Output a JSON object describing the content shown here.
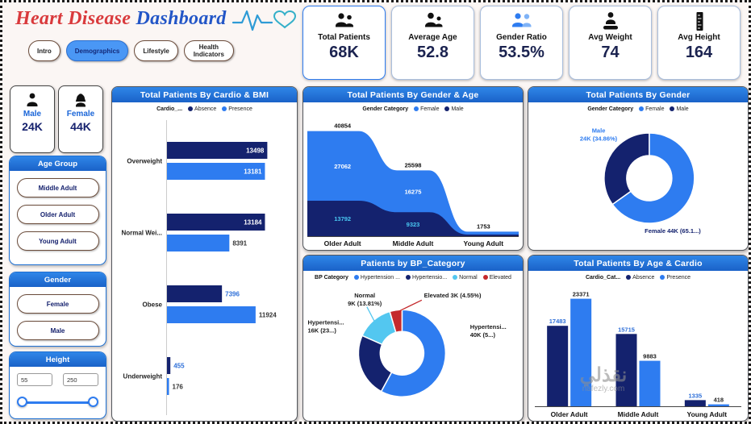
{
  "header": {
    "title_red": "Heart Disease",
    "title_blue": "Dashboard",
    "tabs": [
      {
        "label": "Intro"
      },
      {
        "label": "Demographics"
      },
      {
        "label": "Lifestyle"
      },
      {
        "label": "Health Indicators"
      }
    ]
  },
  "kpis": [
    {
      "label": "Total Patients",
      "value": "68K",
      "icon": "patients-icon"
    },
    {
      "label": "Average Age",
      "value": "52.8",
      "icon": "age-icon"
    },
    {
      "label": "Gender Ratio",
      "value": "53.5%",
      "icon": "gender-ratio-icon"
    },
    {
      "label": "Avg Weight",
      "value": "74",
      "icon": "weight-icon"
    },
    {
      "label": "Avg Height",
      "value": "164",
      "icon": "height-icon"
    }
  ],
  "gender_cards": [
    {
      "label": "Male",
      "value": "24K"
    },
    {
      "label": "Female",
      "value": "44K"
    }
  ],
  "slicers": {
    "age_group": {
      "title": "Age Group",
      "options": [
        "Middle Adult",
        "Older Adult",
        "Young Adult"
      ]
    },
    "gender": {
      "title": "Gender",
      "options": [
        "Female",
        "Male"
      ]
    },
    "height": {
      "title": "Height",
      "min": "55",
      "max": "250"
    }
  },
  "watermark": {
    "line1": "نقذلي",
    "line2": "nafezly.com"
  },
  "colors": {
    "navy": "#14226e",
    "blue": "#2e7cf0",
    "cyan": "#53c7f0",
    "red": "#c4292c",
    "header_blue": "#1d6fd2"
  },
  "chart_data": [
    {
      "id": "cardio-bmi",
      "type": "bar",
      "orientation": "horizontal",
      "title": "Total Patients By Cardio & BMI",
      "legend_title": "Cardio_...",
      "categories": [
        "Overweight",
        "Normal Wei...",
        "Obese",
        "Underweight"
      ],
      "series": [
        {
          "name": "Absence",
          "color": "#14226e",
          "values": [
            13498,
            13184,
            7396,
            455
          ]
        },
        {
          "name": "Presence",
          "color": "#2e7cf0",
          "values": [
            13181,
            8391,
            11924,
            176
          ]
        }
      ],
      "xlim": [
        0,
        14000
      ]
    },
    {
      "id": "gender-age",
      "type": "area",
      "title": "Total Patients By Gender & Age",
      "legend_title": "Gender Category",
      "categories": [
        "Older Adult",
        "Middle Adult",
        "Young Adult"
      ],
      "series": [
        {
          "name": "Female",
          "color": "#2e7cf0",
          "values": [
            27062,
            16275,
            null
          ]
        },
        {
          "name": "Male",
          "color": "#14226e",
          "values": [
            13792,
            9323,
            null
          ]
        }
      ],
      "totals": [
        40854,
        25598,
        1753
      ],
      "ylim": [
        0,
        42000
      ]
    },
    {
      "id": "gender-donut",
      "type": "pie",
      "title": "Total Patients By Gender",
      "legend_title": "Gender Category",
      "legend": [
        {
          "label": "Female",
          "color": "#2e7cf0"
        },
        {
          "label": "Male",
          "color": "#14226e"
        }
      ],
      "center": [
        0.551,
        0.47
      ],
      "radius": 56,
      "hole": 0.5,
      "slices": [
        {
          "name": "Female",
          "pct": 65.14,
          "color": "#2e7cf0",
          "label_lines": [
            "Female 44K (65.1...)"
          ],
          "label_color": "#14226e",
          "label_pos": [
            0.53,
            0.88
          ],
          "label_anchor": "start"
        },
        {
          "name": "Male",
          "pct": 34.86,
          "color": "#14226e",
          "label_lines": [
            "Male",
            "24K (34.86%)"
          ],
          "label_color": "#2e7cf0",
          "label_pos": [
            0.32,
            0.13
          ],
          "label_anchor": "middle"
        }
      ]
    },
    {
      "id": "bp-category",
      "type": "pie",
      "title": "Patients by BP_Category",
      "legend_title": "BP Category",
      "legend": [
        {
          "label": "Hypertension ...",
          "color": "#2e7cf0"
        },
        {
          "label": "Hypertensio...",
          "color": "#14226e"
        },
        {
          "label": "Normal",
          "color": "#53c7f0"
        },
        {
          "label": "Elevated",
          "color": "#c4292c"
        }
      ],
      "center": [
        0.45,
        0.51
      ],
      "radius": 54,
      "hole": 0.5,
      "slices": [
        {
          "name": "Hypertension 40K",
          "pct": 57.94,
          "color": "#2e7cf0",
          "label_lines": [
            "Hypertensi...",
            "40K (5...)"
          ],
          "label_color": "#1a1a1a",
          "label_pos": [
            0.76,
            0.33
          ],
          "label_anchor": "start"
        },
        {
          "name": "Hypertension 16K",
          "pct": 23.7,
          "color": "#14226e",
          "label_lines": [
            "Hypertensi...",
            "16K (23...)"
          ],
          "label_color": "#1a1a1a",
          "label_pos": [
            0.02,
            0.3
          ],
          "label_anchor": "start"
        },
        {
          "name": "Normal",
          "pct": 13.81,
          "color": "#53c7f0",
          "label_lines": [
            "Normal",
            "9K (13.81%)"
          ],
          "label_color": "#1a1a1a",
          "label_pos": [
            0.28,
            0.1
          ],
          "label_anchor": "middle",
          "connector_to": [
            0.29,
            0.17
          ]
        },
        {
          "name": "Elevated",
          "pct": 4.55,
          "color": "#c4292c",
          "label_lines": [
            "Elevated 3K (4.55%)"
          ],
          "label_color": "#1a1a1a",
          "label_pos": [
            0.55,
            0.1
          ],
          "label_anchor": "start",
          "connector_to": [
            0.54,
            0.12
          ]
        }
      ]
    },
    {
      "id": "age-cardio",
      "type": "bar",
      "orientation": "vertical",
      "title": "Total Patients By Age & Cardio",
      "legend_title": "Cardio_Cat...",
      "categories": [
        "Older Adult",
        "Middle Adult",
        "Young Adult"
      ],
      "series": [
        {
          "name": "Absence",
          "color": "#14226e",
          "values": [
            17483,
            15715,
            1335
          ]
        },
        {
          "name": "Presence",
          "color": "#2e7cf0",
          "values": [
            23371,
            9883,
            418
          ]
        }
      ],
      "ylim": [
        0,
        24000
      ]
    }
  ]
}
